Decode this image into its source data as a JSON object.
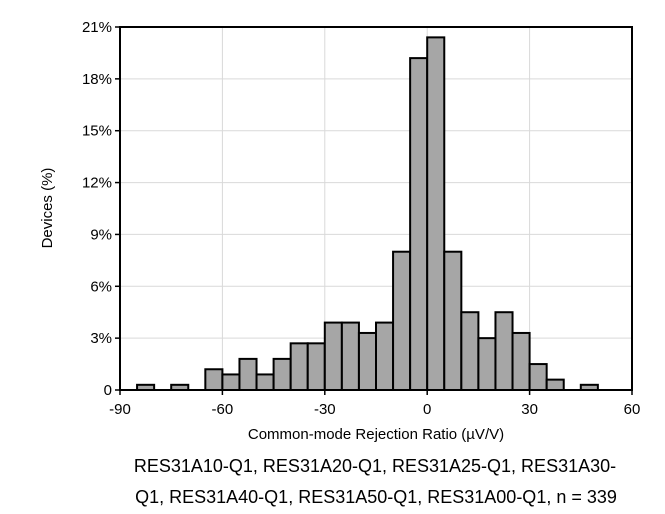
{
  "chart_data": {
    "type": "bar",
    "title": "",
    "xlabel": "Common-mode Rejection Ratio (µV/V)",
    "ylabel": "Devices (%)",
    "xlim": [
      -90,
      60
    ],
    "ylim": [
      0,
      21
    ],
    "x_ticks": [
      -90,
      -60,
      -30,
      0,
      30,
      60
    ],
    "y_ticks": [
      0,
      3,
      6,
      9,
      12,
      15,
      18,
      21
    ],
    "x_tick_labels": [
      "-90",
      "-60",
      "-30",
      "0",
      "30",
      "60"
    ],
    "y_tick_labels": [
      "0",
      "3%",
      "6%",
      "9%",
      "12%",
      "15%",
      "18%",
      "21%"
    ],
    "bin_width": 5,
    "bin_starts": [
      -85,
      -75,
      -65,
      -60,
      -55,
      -50,
      -45,
      -40,
      -35,
      -30,
      -25,
      -20,
      -15,
      -10,
      -5,
      0,
      5,
      10,
      15,
      20,
      25,
      30,
      35,
      45
    ],
    "values": [
      0.3,
      0.3,
      1.2,
      0.9,
      1.8,
      0.9,
      1.8,
      2.7,
      2.7,
      3.9,
      3.9,
      3.3,
      3.9,
      8.0,
      19.2,
      20.4,
      8.0,
      4.5,
      3.0,
      4.5,
      3.3,
      1.5,
      0.6,
      0.3
    ],
    "grid": true,
    "caption_lines": [
      "RES31A10-Q1, RES31A20-Q1, RES31A25-Q1, RES31A30-",
      "Q1, RES31A40-Q1, RES31A50-Q1, RES31A00-Q1, n = 339"
    ]
  },
  "colors": {
    "bar_fill": "#a6a6a6",
    "bar_stroke": "#000000",
    "grid": "#d9d9d9"
  }
}
